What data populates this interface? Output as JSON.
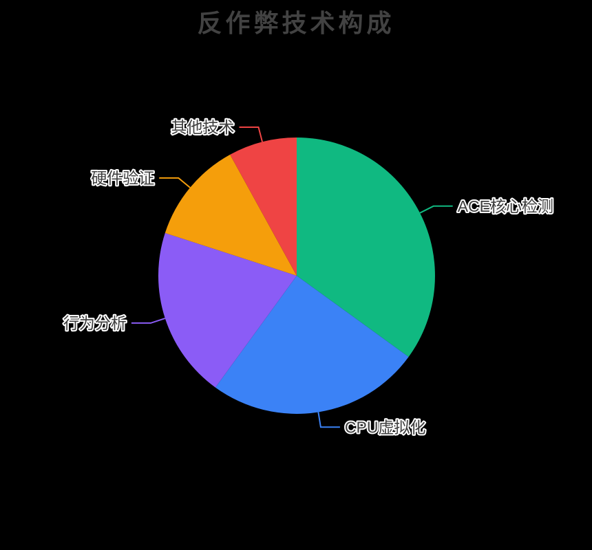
{
  "page": {
    "background": "#000000"
  },
  "chart_data": {
    "type": "pie",
    "title": "反作弊技术构成",
    "title_color": "#424242",
    "background": "#000000",
    "label_color": "#3f3f3f",
    "label_outline_color": "#ffffff",
    "legend": "none",
    "start_angle_deg": 0,
    "direction": "clockwise",
    "unit": "%",
    "slices": [
      {
        "label": "ACE核心检测",
        "value": 35,
        "color": "#10B981"
      },
      {
        "label": "CPU虚拟化",
        "value": 25,
        "color": "#3B82F6"
      },
      {
        "label": "行为分析",
        "value": 20,
        "color": "#8B5CF6"
      },
      {
        "label": "硬件验证",
        "value": 12,
        "color": "#F59E0B"
      },
      {
        "label": "其他技术",
        "value": 8,
        "color": "#EF4444"
      }
    ]
  }
}
